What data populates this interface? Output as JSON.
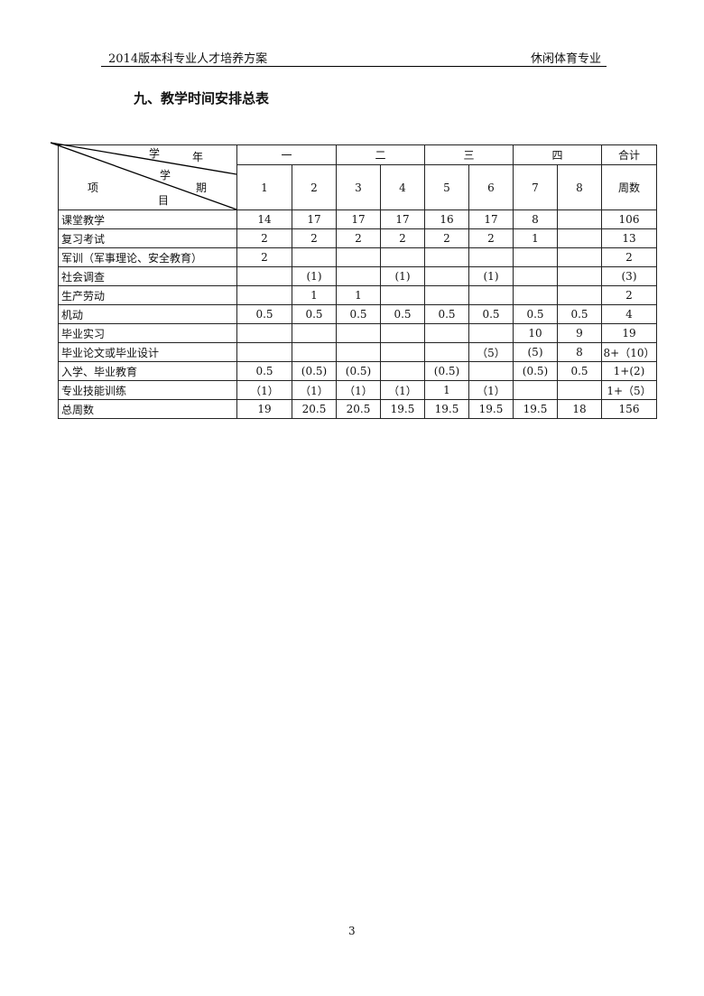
{
  "header": {
    "left": "2014版本科专业人才培养方案",
    "right": "休闲体育专业"
  },
  "title": "九、教学时间安排总表",
  "table": {
    "corner": {
      "year": "学",
      "year2": "年",
      "term": "学",
      "term2": "期",
      "item": "项",
      "item2": "目"
    },
    "years": [
      "一",
      "二",
      "三",
      "四",
      "合计"
    ],
    "terms": [
      "1",
      "2",
      "3",
      "4",
      "5",
      "6",
      "7",
      "8",
      "周数"
    ],
    "rows": [
      {
        "label": "课堂教学",
        "cells": [
          "14",
          "17",
          "17",
          "17",
          "16",
          "17",
          "8",
          "",
          "106"
        ]
      },
      {
        "label": "复习考试",
        "cells": [
          "2",
          "2",
          "2",
          "2",
          "2",
          "2",
          "1",
          "",
          "13"
        ]
      },
      {
        "label": "军训（军事理论、安全教育）",
        "cells": [
          "2",
          "",
          "",
          "",
          "",
          "",
          "",
          "",
          "2"
        ]
      },
      {
        "label": "社会调查",
        "cells": [
          "",
          "(1)",
          "",
          "(1)",
          "",
          "(1)",
          "",
          "",
          "(3)"
        ]
      },
      {
        "label": "生产劳动",
        "cells": [
          "",
          "1",
          "1",
          "",
          "",
          "",
          "",
          "",
          "2"
        ]
      },
      {
        "label": "机动",
        "cells": [
          "0.5",
          "0.5",
          "0.5",
          "0.5",
          "0.5",
          "0.5",
          "0.5",
          "0.5",
          "4"
        ]
      },
      {
        "label": "毕业实习",
        "cells": [
          "",
          "",
          "",
          "",
          "",
          "",
          "10",
          "9",
          "19"
        ]
      },
      {
        "label": "毕业论文或毕业设计",
        "cells": [
          "",
          "",
          "",
          "",
          "",
          "（5）",
          "(5)",
          "8",
          "8+（10）"
        ]
      },
      {
        "label": "入学、毕业教育",
        "cells": [
          "0.5",
          "(0.5)",
          "(0.5)",
          "",
          "(0.5)",
          "",
          "(0.5)",
          "0.5",
          "1+(2)"
        ]
      },
      {
        "label": "专业技能训练",
        "cells": [
          "（1）",
          "（1）",
          "（1）",
          "（1）",
          "1",
          "（1）",
          "",
          "",
          "1+（5）"
        ]
      },
      {
        "label": "总周数",
        "cells": [
          "19",
          "20.5",
          "20.5",
          "19.5",
          "19.5",
          "19.5",
          "19.5",
          "18",
          "156"
        ]
      }
    ]
  },
  "page_number": "3"
}
